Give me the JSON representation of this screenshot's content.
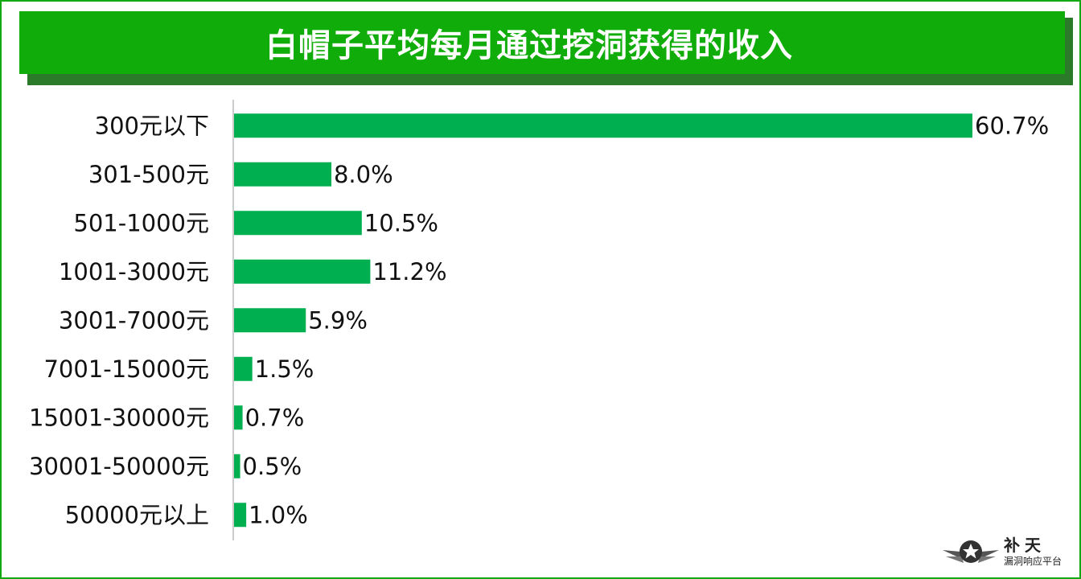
{
  "title": "白帽子平均每月通过挖洞获得的收入",
  "colors": {
    "bar": "#00b050",
    "banner": "#10ad0a",
    "banner_shadow": "#2a7a2a",
    "frame": "#12a812",
    "axis": "#999999"
  },
  "chart_data": {
    "type": "bar",
    "orientation": "horizontal",
    "categories": [
      "300元以下",
      "301-500元",
      "501-1000元",
      "1001-3000元",
      "3001-7000元",
      "7001-15000元",
      "15001-30000元",
      "30001-50000元",
      "50000元以上"
    ],
    "values": [
      60.7,
      8.0,
      10.5,
      11.2,
      5.9,
      1.5,
      0.7,
      0.5,
      1.0
    ],
    "value_labels": [
      "60.7%",
      "8.0%",
      "10.5%",
      "11.2%",
      "5.9%",
      "1.5%",
      "0.7%",
      "0.5%",
      "1.0%"
    ],
    "unit": "%",
    "xlim": [
      0,
      60.7
    ],
    "grid": false,
    "legend": "none"
  },
  "logo": {
    "name": "补天",
    "subtitle": "漏洞响应平台",
    "icon": "star-wings-icon"
  }
}
